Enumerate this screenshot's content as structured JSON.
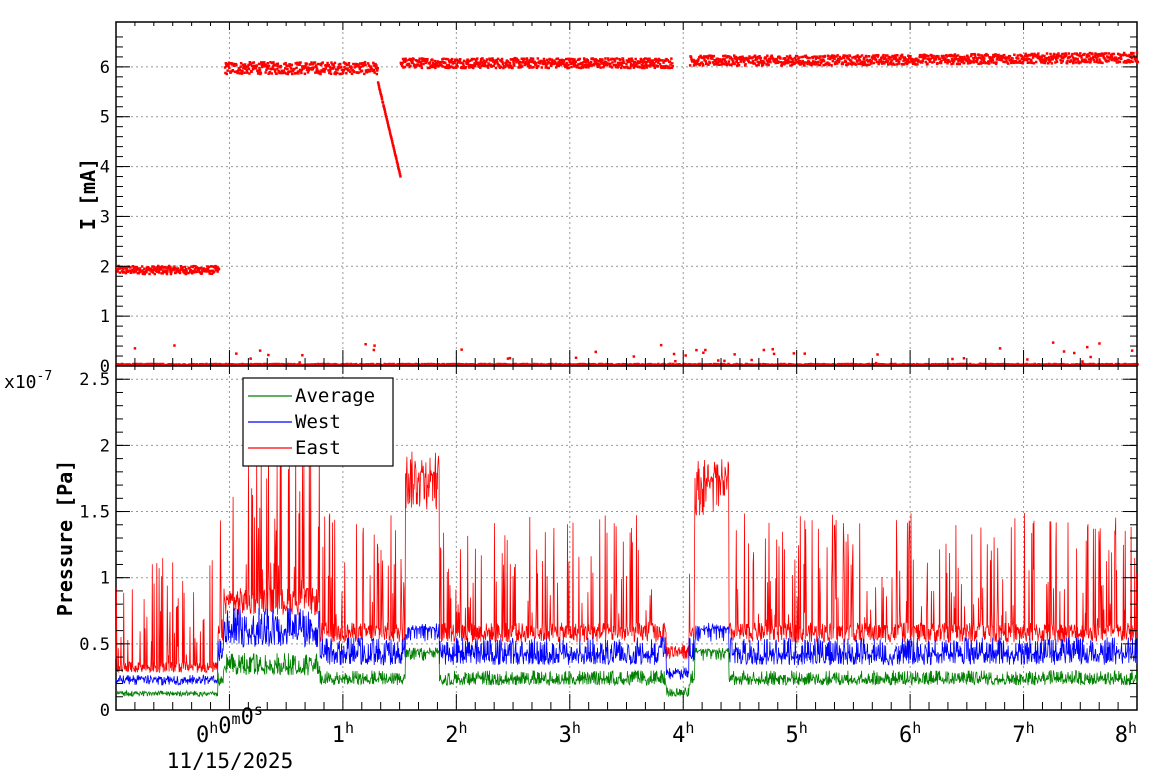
{
  "chart_data": [
    {
      "type": "scatter",
      "ylabel": "I [mA]",
      "ylim": [
        0,
        6.9
      ],
      "xlim_hours": [
        -1.0,
        8.0
      ],
      "yticks": [
        "0",
        "1",
        "2",
        "3",
        "4",
        "5",
        "6"
      ],
      "grid": true,
      "series": [
        {
          "color": "#ff0000",
          "segments": [
            {
              "x_start": -1.0,
              "x_end": -0.1,
              "y": 1.95,
              "scatter": 0.08
            },
            {
              "x_start": -0.05,
              "x_end": 1.3,
              "y": 6.0,
              "scatter": 0.12
            },
            {
              "x_start": 1.3,
              "x_end": 1.5,
              "y_start": 5.7,
              "y_end": 3.8,
              "scatter": 0.02
            },
            {
              "x_start": 1.5,
              "x_end": 3.9,
              "y": 6.1,
              "scatter": 0.1
            },
            {
              "x_start": 4.05,
              "x_end": 8.0,
              "y": 6.15,
              "scatter": 0.1
            }
          ],
          "baseline": {
            "x_start": -1.0,
            "x_end": 8.0,
            "y": 0.05
          }
        }
      ]
    },
    {
      "type": "line",
      "ylabel": "Pressure [Pa]",
      "y_multiplier": "x10",
      "y_exponent": "-7",
      "ylim": [
        0,
        2.6
      ],
      "yticks": [
        "0",
        "0.5",
        "1",
        "1.5",
        "2",
        "2.5"
      ],
      "xlim_hours": [
        -1.0,
        8.0
      ],
      "xticks": [
        {
          "hours": 0,
          "label": "0",
          "sup": "h",
          "extra": "0",
          "extra_sup": "m",
          "extra2": "0",
          "extra2_sup": "s"
        },
        {
          "hours": 1,
          "label": "1",
          "sup": "h"
        },
        {
          "hours": 2,
          "label": "2",
          "sup": "h"
        },
        {
          "hours": 3,
          "label": "3",
          "sup": "h"
        },
        {
          "hours": 4,
          "label": "4",
          "sup": "h"
        },
        {
          "hours": 5,
          "label": "5",
          "sup": "h"
        },
        {
          "hours": 6,
          "label": "6",
          "sup": "h"
        },
        {
          "hours": 7,
          "label": "7",
          "sup": "h"
        },
        {
          "hours": 8,
          "label": "8",
          "sup": "h"
        }
      ],
      "date_label": "11/15/2025",
      "legend_position": "top-left",
      "grid": true,
      "series": [
        {
          "name": "Average",
          "color": "#008000",
          "base": 0.22,
          "spike_top": 0.3
        },
        {
          "name": "West",
          "color": "#0000ff",
          "base": 0.4,
          "spike_top": 0.55
        },
        {
          "name": "East",
          "color": "#ff0000",
          "base": 0.6,
          "spike_top": 1.5
        }
      ]
    }
  ]
}
